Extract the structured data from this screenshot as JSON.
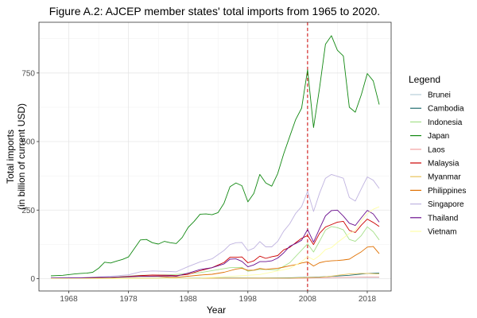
{
  "chart_data": {
    "type": "line",
    "title": "Figure A.2: AJCEP member states' total imports from 1965 to 2020.",
    "xlabel": "Year",
    "ylabel_lines": [
      "Total imports",
      "(in billion of current USD)"
    ],
    "xlim": [
      1963,
      2022
    ],
    "ylim": [
      -45,
      935
    ],
    "x_ticks": [
      1968,
      1978,
      1988,
      1998,
      2008,
      2018
    ],
    "y_ticks": [
      0,
      250,
      500,
      750
    ],
    "grid": true,
    "legend_title": "Legend",
    "legend_position": "right",
    "reference_line": {
      "x": 2008,
      "color": "#cc0000",
      "style": "dashed"
    },
    "series": [
      {
        "name": "Brunei",
        "color": "#b7cfd9",
        "points": [
          [
            1965,
            1
          ],
          [
            1975,
            2
          ],
          [
            1985,
            3
          ],
          [
            1995,
            4
          ],
          [
            2005,
            2
          ],
          [
            2010,
            3
          ],
          [
            2015,
            4
          ],
          [
            2020,
            4
          ]
        ]
      },
      {
        "name": "Cambodia",
        "color": "#1e6b6e",
        "points": [
          [
            1965,
            1
          ],
          [
            1975,
            1
          ],
          [
            1985,
            1
          ],
          [
            1995,
            2
          ],
          [
            2000,
            2
          ],
          [
            2005,
            3
          ],
          [
            2008,
            5
          ],
          [
            2010,
            6
          ],
          [
            2015,
            12
          ],
          [
            2018,
            19
          ],
          [
            2020,
            20
          ]
        ]
      },
      {
        "name": "Indonesia",
        "color": "#a6e08a",
        "points": [
          [
            1965,
            2
          ],
          [
            1970,
            3
          ],
          [
            1975,
            5
          ],
          [
            1980,
            12
          ],
          [
            1985,
            14
          ],
          [
            1990,
            22
          ],
          [
            1995,
            40
          ],
          [
            1997,
            41
          ],
          [
            1998,
            27
          ],
          [
            2000,
            34
          ],
          [
            2003,
            32
          ],
          [
            2005,
            58
          ],
          [
            2008,
            127
          ],
          [
            2009,
            97
          ],
          [
            2010,
            136
          ],
          [
            2011,
            177
          ],
          [
            2012,
            190
          ],
          [
            2013,
            186
          ],
          [
            2014,
            178
          ],
          [
            2015,
            143
          ],
          [
            2016,
            136
          ],
          [
            2017,
            157
          ],
          [
            2018,
            189
          ],
          [
            2019,
            171
          ],
          [
            2020,
            141
          ]
        ]
      },
      {
        "name": "Japan",
        "color": "#118811",
        "points": [
          [
            1965,
            10
          ],
          [
            1967,
            12
          ],
          [
            1969,
            17
          ],
          [
            1970,
            19
          ],
          [
            1971,
            20
          ],
          [
            1972,
            23
          ],
          [
            1973,
            38
          ],
          [
            1974,
            60
          ],
          [
            1975,
            57
          ],
          [
            1976,
            64
          ],
          [
            1977,
            70
          ],
          [
            1978,
            79
          ],
          [
            1979,
            110
          ],
          [
            1980,
            141
          ],
          [
            1981,
            143
          ],
          [
            1982,
            131
          ],
          [
            1983,
            126
          ],
          [
            1984,
            136
          ],
          [
            1985,
            131
          ],
          [
            1986,
            128
          ],
          [
            1987,
            150
          ],
          [
            1988,
            187
          ],
          [
            1989,
            209
          ],
          [
            1990,
            235
          ],
          [
            1991,
            236
          ],
          [
            1992,
            233
          ],
          [
            1993,
            241
          ],
          [
            1994,
            275
          ],
          [
            1995,
            335
          ],
          [
            1996,
            349
          ],
          [
            1997,
            339
          ],
          [
            1998,
            280
          ],
          [
            1999,
            311
          ],
          [
            2000,
            380
          ],
          [
            2001,
            349
          ],
          [
            2002,
            337
          ],
          [
            2003,
            383
          ],
          [
            2004,
            455
          ],
          [
            2005,
            518
          ],
          [
            2006,
            580
          ],
          [
            2007,
            622
          ],
          [
            2008,
            762
          ],
          [
            2009,
            551
          ],
          [
            2010,
            694
          ],
          [
            2011,
            855
          ],
          [
            2012,
            886
          ],
          [
            2013,
            833
          ],
          [
            2014,
            812
          ],
          [
            2015,
            625
          ],
          [
            2016,
            607
          ],
          [
            2017,
            671
          ],
          [
            2018,
            748
          ],
          [
            2019,
            721
          ],
          [
            2020,
            635
          ]
        ]
      },
      {
        "name": "Laos",
        "color": "#f4a0a0",
        "points": [
          [
            1965,
            0
          ],
          [
            1975,
            0
          ],
          [
            1985,
            1
          ],
          [
            1995,
            1
          ],
          [
            2005,
            1
          ],
          [
            2008,
            2
          ],
          [
            2010,
            3
          ],
          [
            2015,
            5
          ],
          [
            2018,
            6
          ],
          [
            2020,
            6
          ]
        ]
      },
      {
        "name": "Malaysia",
        "color": "#cc0000",
        "points": [
          [
            1965,
            2
          ],
          [
            1970,
            2
          ],
          [
            1975,
            4
          ],
          [
            1980,
            11
          ],
          [
            1982,
            13
          ],
          [
            1985,
            12
          ],
          [
            1986,
            11
          ],
          [
            1988,
            16
          ],
          [
            1990,
            29
          ],
          [
            1992,
            40
          ],
          [
            1994,
            59
          ],
          [
            1995,
            78
          ],
          [
            1996,
            78
          ],
          [
            1997,
            79
          ],
          [
            1998,
            58
          ],
          [
            1999,
            65
          ],
          [
            2000,
            82
          ],
          [
            2001,
            74
          ],
          [
            2002,
            80
          ],
          [
            2003,
            84
          ],
          [
            2004,
            105
          ],
          [
            2005,
            114
          ],
          [
            2006,
            131
          ],
          [
            2007,
            147
          ],
          [
            2008,
            157
          ],
          [
            2009,
            124
          ],
          [
            2010,
            165
          ],
          [
            2011,
            188
          ],
          [
            2012,
            197
          ],
          [
            2013,
            206
          ],
          [
            2014,
            209
          ],
          [
            2015,
            176
          ],
          [
            2016,
            168
          ],
          [
            2017,
            195
          ],
          [
            2018,
            217
          ],
          [
            2019,
            205
          ],
          [
            2020,
            190
          ]
        ]
      },
      {
        "name": "Myanmar",
        "color": "#e8c35a",
        "points": [
          [
            1965,
            1
          ],
          [
            1975,
            1
          ],
          [
            1985,
            1
          ],
          [
            1995,
            2
          ],
          [
            2000,
            2
          ],
          [
            2005,
            2
          ],
          [
            2008,
            4
          ],
          [
            2010,
            5
          ],
          [
            2012,
            9
          ],
          [
            2013,
            12
          ],
          [
            2015,
            17
          ],
          [
            2017,
            19
          ],
          [
            2018,
            19
          ],
          [
            2019,
            18
          ],
          [
            2020,
            17
          ]
        ]
      },
      {
        "name": "Philippines",
        "color": "#e07000",
        "points": [
          [
            1965,
            1
          ],
          [
            1970,
            1
          ],
          [
            1975,
            4
          ],
          [
            1980,
            8
          ],
          [
            1983,
            8
          ],
          [
            1985,
            5
          ],
          [
            1986,
            5
          ],
          [
            1988,
            9
          ],
          [
            1990,
            13
          ],
          [
            1992,
            16
          ],
          [
            1994,
            23
          ],
          [
            1995,
            29
          ],
          [
            1996,
            35
          ],
          [
            1997,
            38
          ],
          [
            1998,
            30
          ],
          [
            1999,
            31
          ],
          [
            2000,
            37
          ],
          [
            2001,
            34
          ],
          [
            2002,
            36
          ],
          [
            2003,
            38
          ],
          [
            2004,
            42
          ],
          [
            2005,
            47
          ],
          [
            2006,
            51
          ],
          [
            2007,
            57
          ],
          [
            2008,
            61
          ],
          [
            2009,
            46
          ],
          [
            2010,
            58
          ],
          [
            2011,
            63
          ],
          [
            2012,
            65
          ],
          [
            2013,
            66
          ],
          [
            2014,
            68
          ],
          [
            2015,
            71
          ],
          [
            2016,
            85
          ],
          [
            2017,
            98
          ],
          [
            2018,
            115
          ],
          [
            2019,
            117
          ],
          [
            2020,
            91
          ]
        ]
      },
      {
        "name": "Singapore",
        "color": "#c0b4e0",
        "points": [
          [
            1965,
            2
          ],
          [
            1970,
            3
          ],
          [
            1975,
            9
          ],
          [
            1978,
            14
          ],
          [
            1980,
            25
          ],
          [
            1982,
            28
          ],
          [
            1985,
            26
          ],
          [
            1986,
            25
          ],
          [
            1988,
            44
          ],
          [
            1990,
            61
          ],
          [
            1992,
            72
          ],
          [
            1994,
            103
          ],
          [
            1995,
            124
          ],
          [
            1996,
            131
          ],
          [
            1997,
            132
          ],
          [
            1998,
            102
          ],
          [
            1999,
            111
          ],
          [
            2000,
            135
          ],
          [
            2001,
            116
          ],
          [
            2002,
            116
          ],
          [
            2003,
            136
          ],
          [
            2004,
            173
          ],
          [
            2005,
            200
          ],
          [
            2006,
            238
          ],
          [
            2007,
            263
          ],
          [
            2008,
            319
          ],
          [
            2009,
            245
          ],
          [
            2010,
            311
          ],
          [
            2011,
            366
          ],
          [
            2012,
            380
          ],
          [
            2013,
            373
          ],
          [
            2014,
            366
          ],
          [
            2015,
            296
          ],
          [
            2016,
            283
          ],
          [
            2017,
            328
          ],
          [
            2018,
            371
          ],
          [
            2019,
            359
          ],
          [
            2020,
            329
          ]
        ]
      },
      {
        "name": "Thailand",
        "color": "#6a0f8e",
        "points": [
          [
            1965,
            2
          ],
          [
            1970,
            3
          ],
          [
            1975,
            5
          ],
          [
            1980,
            9
          ],
          [
            1982,
            9
          ],
          [
            1985,
            10
          ],
          [
            1986,
            9
          ],
          [
            1988,
            20
          ],
          [
            1990,
            33
          ],
          [
            1992,
            40
          ],
          [
            1994,
            54
          ],
          [
            1995,
            71
          ],
          [
            1996,
            72
          ],
          [
            1997,
            63
          ],
          [
            1998,
            43
          ],
          [
            1999,
            50
          ],
          [
            2000,
            62
          ],
          [
            2001,
            62
          ],
          [
            2002,
            65
          ],
          [
            2003,
            75
          ],
          [
            2004,
            94
          ],
          [
            2005,
            118
          ],
          [
            2006,
            128
          ],
          [
            2007,
            140
          ],
          [
            2008,
            179
          ],
          [
            2009,
            133
          ],
          [
            2010,
            182
          ],
          [
            2011,
            229
          ],
          [
            2012,
            248
          ],
          [
            2013,
            250
          ],
          [
            2014,
            228
          ],
          [
            2015,
            202
          ],
          [
            2016,
            194
          ],
          [
            2017,
            222
          ],
          [
            2018,
            249
          ],
          [
            2019,
            236
          ],
          [
            2020,
            206
          ]
        ]
      },
      {
        "name": "Vietnam",
        "color": "#ffffa8",
        "points": [
          [
            1965,
            0
          ],
          [
            1975,
            0
          ],
          [
            1985,
            1
          ],
          [
            1990,
            2
          ],
          [
            1995,
            8
          ],
          [
            2000,
            15
          ],
          [
            2005,
            37
          ],
          [
            2007,
            62
          ],
          [
            2008,
            80
          ],
          [
            2009,
            69
          ],
          [
            2010,
            84
          ],
          [
            2011,
            106
          ],
          [
            2012,
            113
          ],
          [
            2013,
            132
          ],
          [
            2014,
            148
          ],
          [
            2015,
            165
          ],
          [
            2016,
            175
          ],
          [
            2017,
            211
          ],
          [
            2018,
            237
          ],
          [
            2019,
            253
          ],
          [
            2020,
            262
          ]
        ]
      }
    ]
  }
}
